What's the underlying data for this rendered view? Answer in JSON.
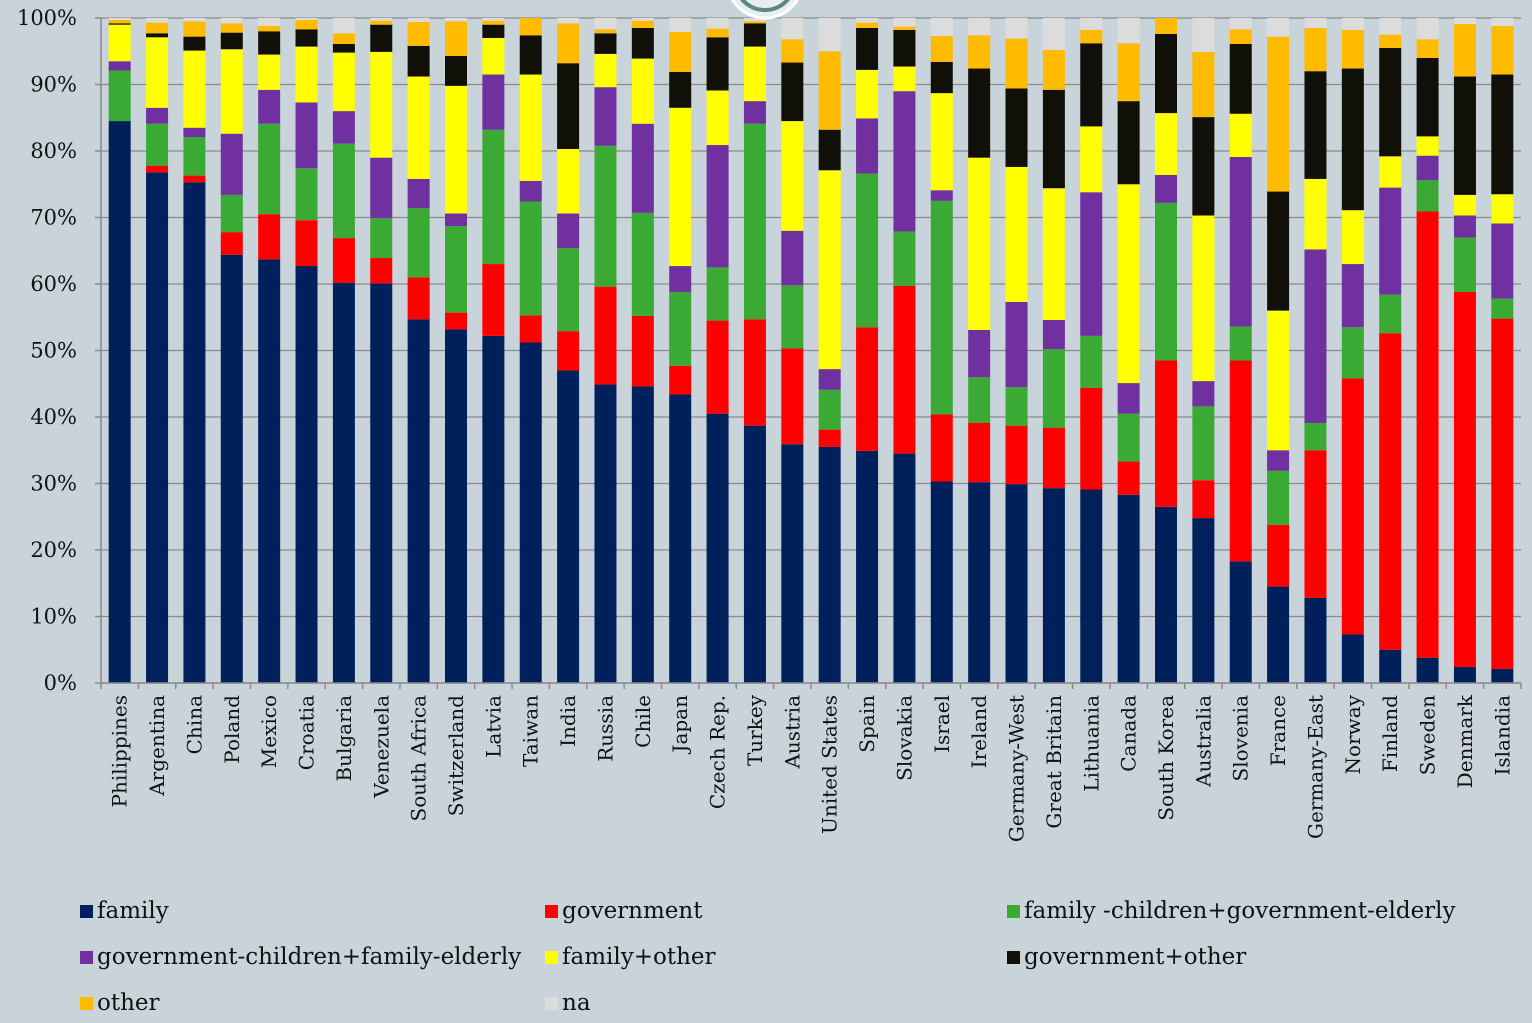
{
  "chart_data": {
    "type": "bar",
    "stacked": true,
    "title": "",
    "xlabel": "",
    "ylabel": "",
    "ylim": [
      0,
      100
    ],
    "yticks": [
      "0%",
      "10%",
      "20%",
      "30%",
      "40%",
      "50%",
      "60%",
      "70%",
      "80%",
      "90%",
      "100%"
    ],
    "grid": true,
    "legend_position": "bottom",
    "categories": [
      "Philippines",
      "Argentina",
      "China",
      "Poland",
      "Mexico",
      "Croatia",
      "Bulgaria",
      "Venezuela",
      "South Africa",
      "Switzerland",
      "Latvia",
      "Taiwan",
      "India",
      "Russia",
      "Chile",
      "Japan",
      "Czech Rep.",
      "Turkey",
      "Austria",
      "United States",
      "Spain",
      "Slovakia",
      "Israel",
      "Ireland",
      "Germany-West",
      "Great Britain",
      "Lithuania",
      "Canada",
      "South Korea",
      "Australia",
      "Slovenia",
      "France",
      "Germany-East",
      "Norway",
      "Finland",
      "Sweden",
      "Denmark",
      "Islandia"
    ],
    "series": [
      {
        "name": "family",
        "color": "#00205b",
        "values": [
          84.5,
          76.8,
          75.3,
          64.4,
          63.7,
          62.7,
          60.2,
          60.1,
          54.7,
          53.2,
          52.2,
          51.2,
          47.0,
          44.9,
          44.6,
          43.4,
          40.5,
          38.7,
          35.9,
          35.5,
          34.9,
          34.5,
          30.3,
          30.2,
          29.9,
          29.3,
          29.1,
          28.3,
          26.5,
          24.8,
          18.3,
          14.5,
          12.8,
          7.3,
          5.0,
          3.8,
          2.4,
          2.1
        ]
      },
      {
        "name": "government",
        "color": "#ff0000",
        "values": [
          0,
          1.0,
          1.0,
          3.4,
          6.8,
          6.9,
          6.7,
          3.8,
          6.3,
          2.5,
          10.8,
          4.1,
          5.9,
          14.7,
          10.6,
          4.3,
          14.0,
          16.0,
          14.4,
          2.6,
          18.6,
          25.2,
          10.1,
          8.9,
          8.8,
          9.1,
          15.3,
          5.0,
          22.0,
          5.7,
          30.2,
          9.3,
          22.2,
          38.5,
          47.6,
          67.1,
          56.4,
          52.7
        ]
      },
      {
        "name": "family -children+government-elderly",
        "color": "#3aaa35",
        "values": [
          7.6,
          6.3,
          5.8,
          5.6,
          13.6,
          7.8,
          14.2,
          6.0,
          10.4,
          13.0,
          20.2,
          17.1,
          12.5,
          21.2,
          15.5,
          11.1,
          8.0,
          29.4,
          9.5,
          6.0,
          23.1,
          8.2,
          32.1,
          6.9,
          5.8,
          11.8,
          7.8,
          7.2,
          23.7,
          11.1,
          5.1,
          8.1,
          4.1,
          7.7,
          5.8,
          4.7,
          8.2,
          3.0
        ]
      },
      {
        "name": "government-children+family-elderly",
        "color": "#7030a0",
        "values": [
          1.4,
          2.4,
          1.4,
          9.2,
          5.1,
          9.9,
          4.9,
          9.1,
          4.4,
          1.9,
          8.3,
          3.1,
          5.2,
          8.8,
          13.4,
          3.9,
          18.4,
          3.4,
          8.2,
          3.1,
          8.3,
          21.1,
          1.6,
          7.1,
          12.8,
          4.4,
          21.6,
          4.6,
          4.2,
          3.8,
          25.5,
          3.1,
          26.1,
          9.5,
          16.1,
          3.7,
          3.3,
          11.3
        ]
      },
      {
        "name": "family+other",
        "color": "#ffff00",
        "values": [
          5.5,
          10.6,
          11.6,
          12.7,
          5.3,
          8.4,
          8.8,
          15.9,
          15.4,
          19.2,
          5.5,
          16.0,
          9.7,
          5.0,
          9.8,
          23.8,
          8.2,
          8.2,
          16.5,
          29.9,
          7.3,
          3.7,
          14.6,
          25.9,
          20.3,
          19.8,
          9.9,
          29.9,
          9.3,
          24.9,
          6.5,
          21.0,
          10.6,
          8.1,
          4.7,
          2.9,
          3.1,
          4.4
        ]
      },
      {
        "name": "government+other",
        "color": "#111008",
        "values": [
          0.2,
          0.6,
          2.1,
          2.5,
          3.5,
          2.6,
          1.3,
          4.1,
          4.6,
          4.5,
          2.0,
          5.9,
          12.9,
          3.1,
          4.6,
          5.4,
          8.0,
          3.5,
          8.8,
          6.1,
          6.3,
          5.5,
          4.7,
          13.4,
          11.8,
          14.8,
          12.5,
          12.5,
          11.9,
          14.8,
          10.5,
          17.9,
          16.2,
          21.3,
          16.3,
          11.8,
          17.8,
          18.0
        ]
      },
      {
        "name": "other",
        "color": "#ffbb00",
        "values": [
          0.5,
          1.6,
          2.3,
          1.4,
          0.8,
          1.4,
          1.6,
          0.6,
          3.6,
          5.2,
          0.6,
          2.6,
          6.0,
          0.6,
          1.1,
          6.0,
          1.3,
          0.3,
          3.5,
          11.8,
          0.8,
          0.5,
          3.9,
          5.0,
          7.5,
          6.0,
          2.0,
          8.7,
          2.4,
          9.8,
          2.2,
          23.3,
          6.5,
          5.8,
          2.0,
          2.8,
          7.9,
          7.3
        ]
      },
      {
        "name": "na",
        "color": "#dcdcdc",
        "values": [
          0.3,
          0.7,
          0.5,
          0.8,
          1.2,
          0.3,
          2.3,
          0.4,
          0.6,
          0.5,
          0.4,
          0.0,
          0.8,
          1.7,
          0.4,
          2.1,
          1.6,
          0.5,
          3.2,
          5.0,
          0.7,
          1.3,
          2.7,
          2.6,
          3.1,
          4.8,
          1.8,
          3.8,
          0.0,
          5.1,
          1.7,
          2.8,
          1.5,
          1.8,
          2.5,
          3.2,
          0.9,
          1.2
        ]
      }
    ]
  }
}
